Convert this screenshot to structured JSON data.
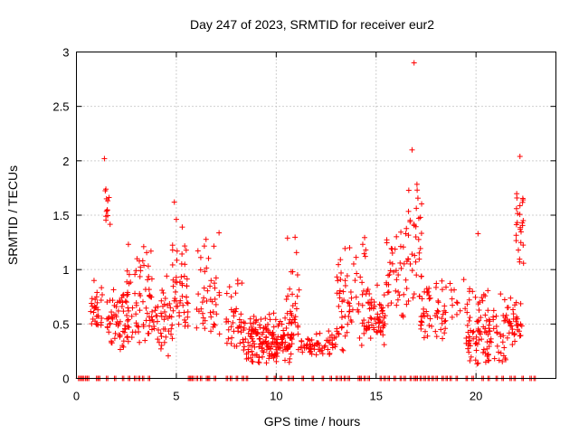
{
  "chart_data": {
    "type": "scatter",
    "title": "Day 247 of 2023, SRMTID for receiver eur2",
    "xlabel": "GPS time / hours",
    "ylabel": "SRMTID / TECUs",
    "xlim": [
      0,
      24
    ],
    "ylim": [
      0,
      3
    ],
    "xticks": [
      "0",
      "5",
      "10",
      "15",
      "20"
    ],
    "yticks": [
      "0",
      "0.5",
      "1",
      "1.5",
      "2",
      "2.5",
      "3"
    ],
    "grid": true,
    "marker": "plus",
    "series_color": "#ff0000",
    "x_range_observed": [
      0.1,
      23.0
    ],
    "clusters": [
      {
        "x": [
          0.7,
          1.3
        ],
        "y": [
          0.4,
          1.0
        ],
        "n": 30
      },
      {
        "x": [
          1.3,
          1.7
        ],
        "y": [
          1.3,
          2.0
        ],
        "n": 12
      },
      {
        "x": [
          1.5,
          2.6
        ],
        "y": [
          0.25,
          0.9
        ],
        "n": 60
      },
      {
        "x": [
          2.5,
          3.8
        ],
        "y": [
          0.3,
          1.35
        ],
        "n": 70
      },
      {
        "x": [
          3.8,
          4.8
        ],
        "y": [
          0.2,
          1.0
        ],
        "n": 45
      },
      {
        "x": [
          4.8,
          5.6
        ],
        "y": [
          0.3,
          1.6
        ],
        "n": 50
      },
      {
        "x": [
          6.0,
          7.2
        ],
        "y": [
          0.4,
          1.4
        ],
        "n": 45
      },
      {
        "x": [
          7.5,
          8.5
        ],
        "y": [
          0.2,
          1.0
        ],
        "n": 45
      },
      {
        "x": [
          8.5,
          10.8
        ],
        "y": [
          0.1,
          0.65
        ],
        "n": 180
      },
      {
        "x": [
          10.5,
          11.2
        ],
        "y": [
          0.2,
          1.4
        ],
        "n": 30
      },
      {
        "x": [
          11.2,
          13.0
        ],
        "y": [
          0.2,
          0.45
        ],
        "n": 60
      },
      {
        "x": [
          13.0,
          14.5
        ],
        "y": [
          0.25,
          1.35
        ],
        "n": 70
      },
      {
        "x": [
          14.5,
          15.5
        ],
        "y": [
          0.3,
          0.9
        ],
        "n": 60
      },
      {
        "x": [
          15.5,
          16.5
        ],
        "y": [
          0.5,
          1.6
        ],
        "n": 40
      },
      {
        "x": [
          16.5,
          17.3
        ],
        "y": [
          0.6,
          2.1
        ],
        "n": 40
      },
      {
        "x": [
          17.2,
          18.5
        ],
        "y": [
          0.3,
          1.0
        ],
        "n": 55
      },
      {
        "x": [
          18.7,
          19.7
        ],
        "y": [
          0.5,
          1.0
        ],
        "n": 15
      },
      {
        "x": [
          19.5,
          21.5
        ],
        "y": [
          0.1,
          0.85
        ],
        "n": 110
      },
      {
        "x": [
          21.5,
          22.3
        ],
        "y": [
          0.3,
          0.75
        ],
        "n": 40
      },
      {
        "x": [
          22.0,
          22.4
        ],
        "y": [
          1.0,
          2.0
        ],
        "n": 25
      }
    ],
    "notable_points": [
      {
        "x": 16.9,
        "y": 2.9
      },
      {
        "x": 1.4,
        "y": 2.02
      },
      {
        "x": 22.2,
        "y": 2.04
      },
      {
        "x": 16.8,
        "y": 2.1
      },
      {
        "x": 4.9,
        "y": 1.62
      },
      {
        "x": 20.1,
        "y": 1.33
      }
    ],
    "zero_x": [
      0.1,
      0.2,
      0.3,
      0.45,
      0.55,
      1.0,
      1.1,
      1.5,
      1.9,
      2.3,
      2.6,
      2.9,
      3.1,
      3.3,
      3.6,
      5.6,
      5.7,
      5.8,
      6.0,
      6.2,
      6.5,
      6.6,
      6.9,
      7.5,
      7.7,
      8.0,
      8.3,
      8.5,
      9.5,
      9.9,
      10.2,
      10.6,
      10.8,
      11.3,
      11.8,
      12.3,
      12.7,
      13.0,
      13.2,
      13.4,
      13.6,
      14.1,
      14.2,
      14.4,
      14.6,
      15.2,
      15.4,
      15.6,
      15.9,
      16.2,
      16.4,
      16.7,
      16.9,
      17.0,
      17.2,
      17.4,
      17.6,
      17.8,
      18.0,
      18.3,
      18.5,
      18.7,
      19.0,
      19.5,
      19.8,
      20.3,
      20.6,
      21.0,
      21.3,
      21.7,
      21.9,
      22.3,
      22.7,
      22.9
    ]
  }
}
